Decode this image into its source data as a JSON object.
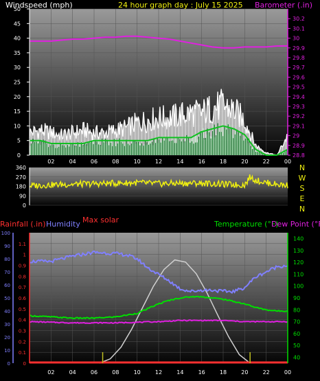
{
  "colors": {
    "background": "#000000",
    "wind_axis": "#ffffff",
    "gust": "#ffffff",
    "avg_wind_dark": "#0a6a20",
    "avg_wind_light": "#bff2c8",
    "barometer": "#e020e0",
    "direction": "#f0f010",
    "compass": "#f0f010",
    "rainfall": "#ff3030",
    "humidity": "#8080ff",
    "temperature": "#00e000",
    "dewpoint": "#e020e0",
    "solar": "#d0d0d0",
    "grid": "#555555"
  },
  "wind_panel": {
    "left_title": "Windspeed (mph)",
    "center_title": "24 hour graph day : July 15 2025",
    "right_title": "Barometer (.in)"
  },
  "dir_panel": {
    "compass": [
      "N",
      "W",
      "S",
      "E",
      "N"
    ]
  },
  "temp_panel": {
    "rain_title": "Rainfall (.in)",
    "humidity_title": "Humidity",
    "solar_title": "Max solar",
    "temp_title": "Temperature (°F)",
    "dew_title": "Dew Point (°F)"
  },
  "chart_data": [
    {
      "type": "line",
      "panel": "wind",
      "title": "24 hour graph day : July 15 2025",
      "ylabel": "Windspeed (mph)",
      "y2label": "Barometer (.in)",
      "ylim": [
        0,
        50
      ],
      "y_ticks": [
        "0",
        "5",
        "10",
        "15",
        "20",
        "25",
        "30",
        "35",
        "40",
        "45",
        "50"
      ],
      "y2lim": [
        28.8,
        30.3
      ],
      "y2_ticks": [
        "28.8",
        "28.9",
        "29",
        "29.1",
        "29.2",
        "29.3",
        "29.4",
        "29.5",
        "29.6",
        "29.7",
        "29.8",
        "29.9",
        "30",
        "30.1",
        "30.2"
      ],
      "xlim": [
        0,
        24
      ],
      "x_ticks": [
        "02",
        "04",
        "06",
        "08",
        "10",
        "12",
        "14",
        "16",
        "18",
        "20",
        "22",
        "00"
      ],
      "grid": true,
      "series": [
        {
          "role": "gust",
          "x": [
            0,
            1,
            2,
            3,
            4,
            5,
            6,
            7,
            8,
            9,
            10,
            11,
            12,
            13,
            14,
            15,
            16,
            17,
            18,
            19,
            20,
            21,
            22,
            23,
            24
          ],
          "values": [
            9,
            10,
            9,
            8,
            9,
            10,
            9,
            9,
            10,
            11,
            13,
            14,
            15,
            15,
            16,
            17,
            17,
            19,
            20,
            18,
            14,
            4,
            1,
            0,
            8
          ]
        },
        {
          "role": "average",
          "x": [
            0,
            1,
            2,
            3,
            4,
            5,
            6,
            7,
            8,
            9,
            10,
            11,
            12,
            13,
            14,
            15,
            15.5,
            16,
            17,
            18,
            19,
            20,
            21,
            22,
            23,
            24
          ],
          "values": [
            5,
            5,
            4,
            4,
            4,
            4,
            5,
            5,
            5,
            5,
            5,
            5,
            6,
            6,
            6,
            6,
            7,
            8,
            9,
            10,
            9,
            7,
            2,
            0,
            0,
            2
          ]
        },
        {
          "role": "barometer",
          "x": [
            0,
            1,
            2,
            3,
            4,
            5,
            6,
            7,
            8,
            9,
            10,
            11,
            12,
            13,
            14,
            15,
            16,
            17,
            18,
            19,
            20,
            21,
            22,
            23,
            24
          ],
          "values": [
            29.97,
            29.97,
            29.97,
            29.98,
            29.99,
            29.99,
            30.0,
            30.01,
            30.01,
            30.02,
            30.02,
            30.01,
            30.0,
            29.99,
            29.97,
            29.95,
            29.93,
            29.91,
            29.9,
            29.9,
            29.91,
            29.91,
            29.91,
            29.92,
            29.92
          ]
        }
      ]
    },
    {
      "type": "line",
      "panel": "wind_direction",
      "ylim": [
        0,
        360
      ],
      "y_ticks": [
        "0",
        "90",
        "180",
        "270",
        "360"
      ],
      "xlim": [
        0,
        24
      ],
      "series": [
        {
          "role": "direction",
          "x": [
            0,
            2,
            4,
            6,
            8,
            10,
            12,
            14,
            16,
            18,
            19.5,
            20,
            20.5,
            21,
            22,
            23,
            24
          ],
          "values": [
            185,
            195,
            200,
            205,
            210,
            215,
            205,
            210,
            210,
            200,
            195,
            195,
            270,
            240,
            215,
            200,
            190
          ]
        }
      ]
    },
    {
      "type": "line",
      "panel": "temperature",
      "ylabel": "Rainfall (.in)",
      "ylim": [
        0,
        1.2
      ],
      "y_ticks": [
        "0",
        "0.1",
        "0.2",
        "0.3",
        "0.4",
        "0.5",
        "0.6",
        "0.7",
        "0.8",
        "0.9",
        "1",
        "1.1"
      ],
      "humidity_lim": [
        0,
        100
      ],
      "humidity_ticks": [
        "0",
        "10",
        "20",
        "30",
        "40",
        "50",
        "60",
        "70",
        "80",
        "90",
        "100"
      ],
      "temp_lim": [
        35,
        145
      ],
      "temp_ticks": [
        "40",
        "50",
        "60",
        "70",
        "80",
        "90",
        "100",
        "110",
        "120",
        "130",
        "140"
      ],
      "xlim": [
        0,
        24
      ],
      "x_ticks": [
        "02",
        "04",
        "06",
        "08",
        "10",
        "12",
        "14",
        "16",
        "18",
        "20",
        "22",
        "00"
      ],
      "grid": true,
      "series": [
        {
          "role": "humidity",
          "name": "Humidity",
          "x": [
            0,
            2,
            4,
            6,
            8,
            9,
            10,
            11,
            12,
            13,
            14,
            15,
            16,
            17,
            18,
            19,
            20,
            21,
            22,
            23,
            24
          ],
          "values": [
            78,
            78,
            82,
            85,
            84,
            83,
            80,
            73,
            68,
            63,
            57,
            55,
            56,
            56,
            55,
            55,
            58,
            66,
            70,
            74,
            75
          ]
        },
        {
          "role": "temperature",
          "name": "Temperature (°F)",
          "x": [
            0,
            2,
            4,
            6,
            8,
            10,
            11,
            12,
            13,
            14,
            15,
            16,
            17,
            18,
            19,
            20,
            21,
            22,
            23,
            24
          ],
          "values": [
            75,
            74,
            73,
            73,
            74,
            77,
            81,
            85,
            88,
            90,
            91,
            91,
            90,
            89,
            87,
            85,
            82,
            80,
            79,
            79
          ]
        },
        {
          "role": "dewpoint",
          "name": "Dew Point (°F)",
          "x": [
            0,
            4,
            8,
            12,
            14,
            16,
            18,
            20,
            22,
            24
          ],
          "values": [
            70,
            69,
            69,
            70,
            71,
            71,
            71,
            70,
            70,
            70
          ]
        },
        {
          "role": "solar",
          "name": "Max solar",
          "x": [
            6.5,
            7.5,
            8.5,
            9.5,
            10.5,
            11.5,
            12.5,
            13.5,
            14.5,
            15.5,
            16.5,
            17.5,
            18.5,
            19.5,
            20.5
          ],
          "values": [
            0,
            0.04,
            0.15,
            0.32,
            0.52,
            0.72,
            0.88,
            0.97,
            0.95,
            0.84,
            0.66,
            0.45,
            0.25,
            0.08,
            0
          ]
        },
        {
          "role": "rainfall",
          "name": "Rainfall (.in)",
          "x": [
            0,
            24
          ],
          "values": [
            0,
            0
          ]
        }
      ],
      "markers": [
        6.8,
        20.5
      ]
    }
  ]
}
